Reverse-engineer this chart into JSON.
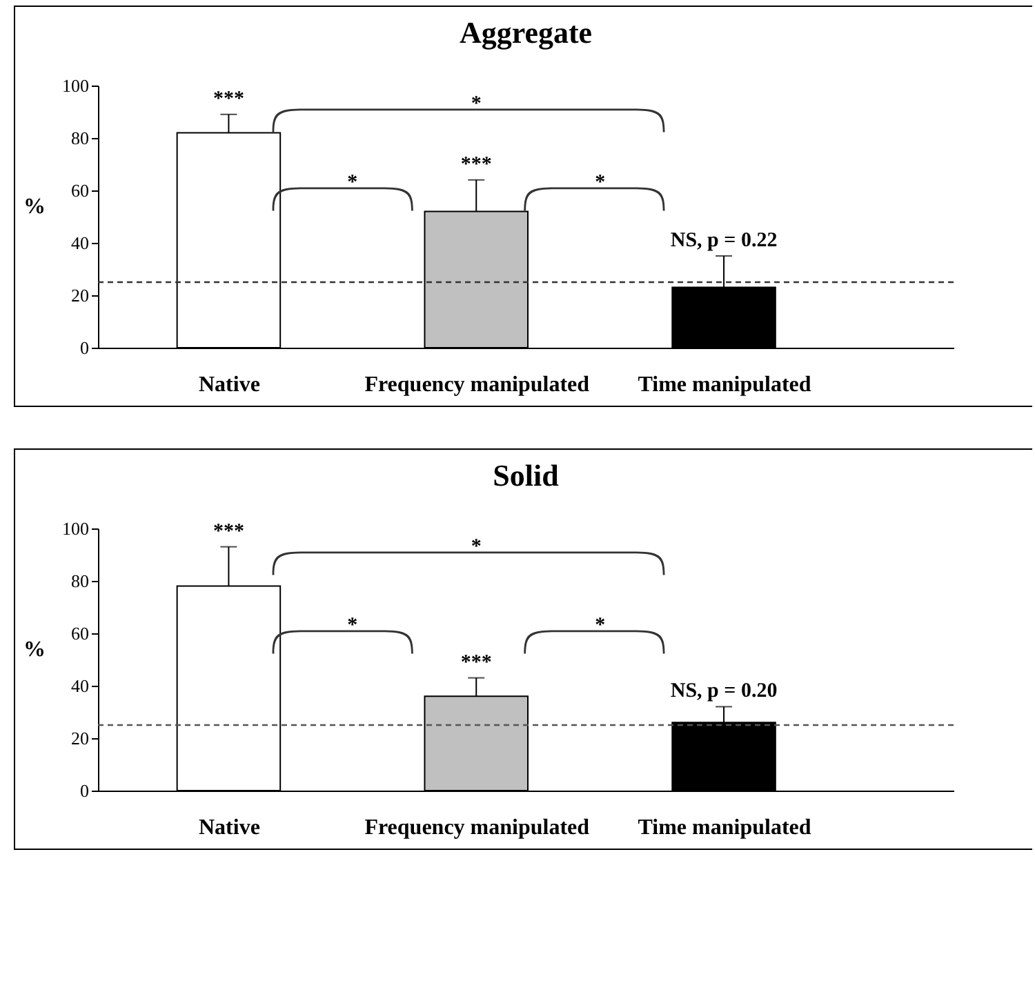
{
  "chart_data": [
    {
      "type": "bar",
      "title": "Aggregate",
      "ylabel": "%",
      "categories": [
        "Native",
        "Frequency manipulated",
        "Time manipulated"
      ],
      "values": [
        82,
        52,
        23
      ],
      "colors": [
        "#ffffff",
        "#c0c0c0",
        "#000000"
      ],
      "errors": [
        [
          82,
          89
        ],
        [
          52,
          64
        ],
        [
          23,
          35
        ]
      ],
      "ylim": [
        0,
        100
      ],
      "yticks": [
        0,
        20,
        40,
        60,
        80,
        100
      ],
      "ref_lines": [
        {
          "axis": "y",
          "value": 25,
          "line_style": "dashed",
          "color": "#333333"
        }
      ],
      "annotations": [
        "***",
        "***",
        {
          "text": "NS, p = 0.22",
          "x": "Time manipulated",
          "y": 35
        },
        "*",
        "*",
        "*"
      ]
    },
    {
      "type": "bar",
      "title": "Solid",
      "ylabel": "%",
      "categories": [
        "Native",
        "Frequency manipulated",
        "Time manipulated"
      ],
      "values": [
        78,
        36,
        26
      ],
      "colors": [
        "#ffffff",
        "#c0c0c0",
        "#000000"
      ],
      "errors": [
        [
          78,
          93
        ],
        [
          36,
          43
        ],
        [
          26,
          32
        ]
      ],
      "ylim": [
        0,
        100
      ],
      "yticks": [
        0,
        20,
        40,
        60,
        80,
        100
      ],
      "ref_lines": [
        {
          "axis": "y",
          "value": 25,
          "line_style": "dashed",
          "color": "#555555"
        }
      ],
      "annotations": [
        "***",
        "***",
        {
          "text": "NS, p = 0.20",
          "x": "Time manipulated",
          "y": 32
        },
        "*",
        "*",
        "*"
      ]
    }
  ]
}
